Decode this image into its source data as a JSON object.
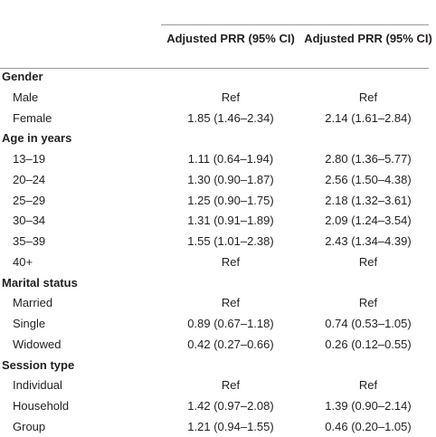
{
  "table": {
    "columns": [
      "Adjusted PRR (95% CI)",
      "Adjusted PRR (95% CI)"
    ],
    "sections": [
      {
        "title": "Gender",
        "rows": [
          [
            "Male",
            "Ref",
            "Ref"
          ],
          [
            "Female",
            "1.85 (1.46–2.34)",
            "2.14 (1.61–2.84)"
          ]
        ]
      },
      {
        "title": "Age in years",
        "rows": [
          [
            "13–19",
            "1.11 (0.64–1.94)",
            "2.80 (1.36–5.77)"
          ],
          [
            "20–24",
            "1.30 (0.90–1.87)",
            "2.56 (1.50–4.38)"
          ],
          [
            "25–29",
            "1.25 (0.90–1.75)",
            "2.18 (1.32–3.61)"
          ],
          [
            "30–34",
            "1.31 (0.91–1.89)",
            "2.09 (1.24–3.54)"
          ],
          [
            "35–39",
            "1.55 (1.01–2.38)",
            "2.43 (1.34–4.39)"
          ],
          [
            "40+",
            "Ref",
            "Ref"
          ]
        ]
      },
      {
        "title": "Marital status",
        "rows": [
          [
            "Married",
            "Ref",
            "Ref"
          ],
          [
            "Single",
            "0.89 (0.67–1.18)",
            "0.74 (0.53–1.05)"
          ],
          [
            "Widowed",
            "0.42 (0.27–0.66)",
            "0.26 (0.12–0.55)"
          ]
        ]
      },
      {
        "title": "Session type",
        "rows": [
          [
            "Individual",
            "Ref",
            "Ref"
          ],
          [
            "Household",
            "1.42 (0.97–2.08)",
            "1.39 (0.90–2.14)"
          ],
          [
            "Group",
            "1.21 (0.94–1.55)",
            "0.46 (0.20–1.05)"
          ]
        ]
      }
    ]
  }
}
